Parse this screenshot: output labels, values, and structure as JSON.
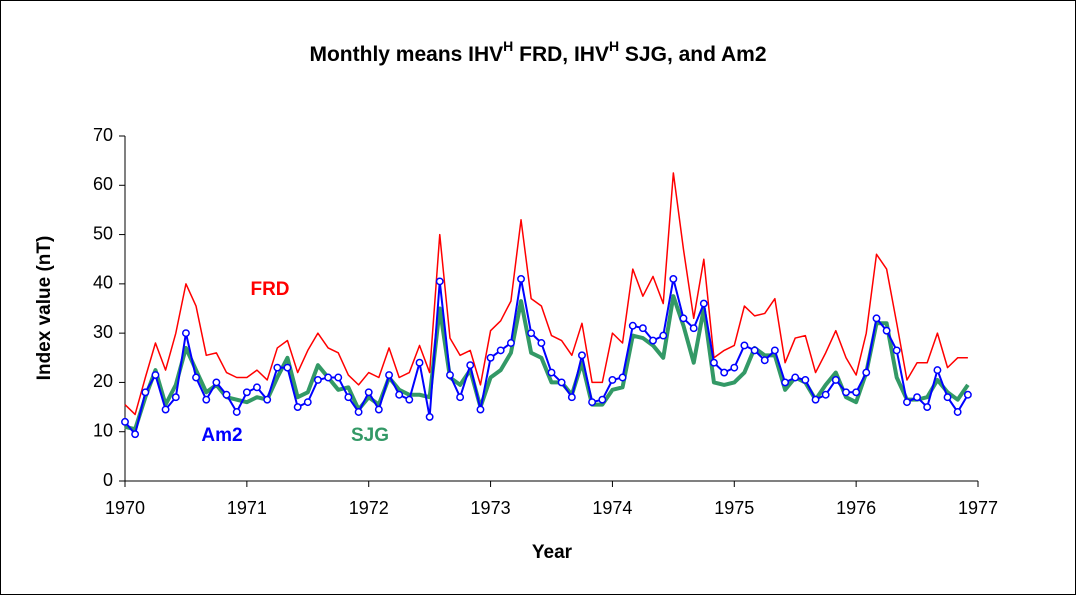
{
  "chart_data": {
    "type": "line",
    "title": [
      "Monthly means IHV",
      "H",
      " FRD, IHV",
      "H",
      " SJG, and Am2"
    ],
    "x_label": "Year",
    "y_label": "Index value (nT)",
    "xlim": [
      1970,
      1977
    ],
    "xticks": [
      1970,
      1971,
      1972,
      1973,
      1974,
      1975,
      1976,
      1977
    ],
    "ylim": [
      0,
      70
    ],
    "yticks": [
      0,
      10,
      20,
      30,
      40,
      50,
      60,
      70
    ],
    "grid": false,
    "annotations": [
      "FRD",
      "Am2",
      "SJG"
    ],
    "x": [
      1970.0,
      1970.083,
      1970.167,
      1970.25,
      1970.333,
      1970.417,
      1970.5,
      1970.583,
      1970.667,
      1970.75,
      1970.833,
      1970.917,
      1971.0,
      1971.083,
      1971.167,
      1971.25,
      1971.333,
      1971.417,
      1971.5,
      1971.583,
      1971.667,
      1971.75,
      1971.833,
      1971.917,
      1972.0,
      1972.083,
      1972.167,
      1972.25,
      1972.333,
      1972.417,
      1972.5,
      1972.583,
      1972.667,
      1972.75,
      1972.833,
      1972.917,
      1973.0,
      1973.083,
      1973.167,
      1973.25,
      1973.333,
      1973.417,
      1973.5,
      1973.583,
      1973.667,
      1973.75,
      1973.833,
      1973.917,
      1974.0,
      1974.083,
      1974.167,
      1974.25,
      1974.333,
      1974.417,
      1974.5,
      1974.583,
      1974.667,
      1974.75,
      1974.833,
      1974.917,
      1975.0,
      1975.083,
      1975.167,
      1975.25,
      1975.333,
      1975.417,
      1975.5,
      1975.583,
      1975.667,
      1975.75,
      1975.833,
      1975.917,
      1976.0,
      1976.083,
      1976.167,
      1976.25,
      1976.333,
      1976.417,
      1976.5,
      1976.583,
      1976.667,
      1976.75,
      1976.833,
      1976.917
    ],
    "series": [
      {
        "name": "FRD",
        "color": "#ff0000",
        "width": 1.5,
        "marker": false,
        "values": [
          15.5,
          13.5,
          21,
          28,
          22.5,
          30,
          40,
          35.5,
          25.5,
          26,
          22,
          21,
          21,
          22.5,
          20.5,
          27,
          28.5,
          22,
          26.5,
          30,
          27,
          26,
          21.5,
          19.5,
          22,
          21,
          27,
          21,
          22,
          27.5,
          22,
          50,
          29,
          25.5,
          26.5,
          19.5,
          30.5,
          32.5,
          36.5,
          53,
          37,
          35.5,
          29.5,
          28.5,
          25.5,
          32,
          20,
          20,
          30,
          28,
          43,
          37.5,
          41.5,
          36,
          62.5,
          47,
          33,
          45,
          25,
          26.5,
          27.5,
          35.5,
          33.5,
          34,
          37,
          24,
          29,
          29.5,
          22,
          26,
          30.5,
          25,
          21.5,
          30,
          46,
          43,
          32,
          20.5,
          24,
          24,
          30,
          23,
          25,
          25
        ]
      },
      {
        "name": "SJG",
        "color": "#339966",
        "width": 4,
        "marker": false,
        "values": [
          11,
          10.5,
          17,
          22.5,
          15.5,
          19.5,
          27,
          22.5,
          18,
          19.5,
          17,
          16.5,
          16,
          17,
          16.5,
          21,
          25,
          17,
          18,
          23.5,
          21,
          18.5,
          19,
          14.5,
          17,
          15.5,
          21,
          18.5,
          17.5,
          17.5,
          17,
          35,
          21,
          19.5,
          22.5,
          15,
          21,
          22.5,
          26,
          36.5,
          26,
          25,
          20,
          20,
          17.5,
          24,
          15.5,
          15.5,
          18.5,
          19,
          29.5,
          29,
          27.5,
          25,
          37.5,
          31.5,
          24,
          35,
          20,
          19.5,
          20,
          22,
          27,
          25.5,
          25.5,
          18.5,
          21,
          20,
          16.5,
          19.5,
          22,
          17,
          16,
          22,
          32,
          32,
          21,
          16.5,
          16.5,
          17,
          20.5,
          18,
          16.5,
          19.5
        ]
      },
      {
        "name": "Am2",
        "color": "#0000ff",
        "width": 2,
        "marker": true,
        "values": [
          12,
          9.5,
          18,
          21.5,
          14.5,
          17,
          30,
          21,
          16.5,
          20,
          17.5,
          14,
          18,
          19,
          16.5,
          23,
          23,
          15,
          16,
          20.5,
          21,
          21,
          17,
          14,
          18,
          14.5,
          21.5,
          17.5,
          16.5,
          24,
          13,
          40.5,
          21.5,
          17,
          23.5,
          14.5,
          25,
          26.5,
          28,
          41,
          30,
          28,
          22,
          20,
          17,
          25.5,
          16,
          16.5,
          20.5,
          21,
          31.5,
          31,
          28.5,
          29.5,
          41,
          33,
          31,
          36,
          24,
          22,
          23,
          27.5,
          26.5,
          24.5,
          26.5,
          20,
          21,
          20.5,
          16.5,
          17.5,
          20.5,
          18,
          18,
          22,
          33,
          30.5,
          26.5,
          16,
          17,
          15,
          22.5,
          17,
          14,
          17.5
        ]
      }
    ]
  }
}
